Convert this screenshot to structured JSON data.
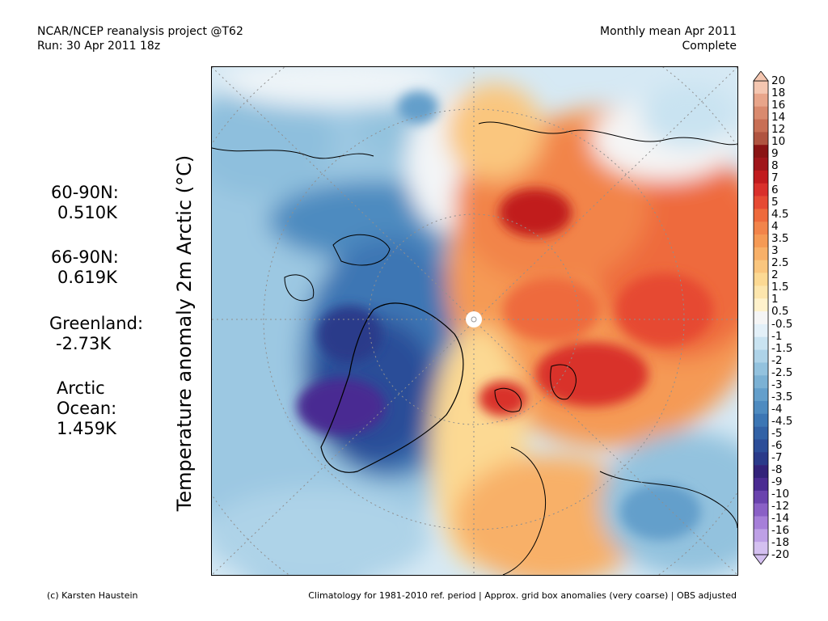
{
  "header": {
    "left_line1": "NCAR/NCEP reanalysis project @T62",
    "left_line2": "Run: 30 Apr 2011 18z",
    "right_line1": "Monthly mean Apr 2011",
    "right_line2": "Complete"
  },
  "axis_title": "Temperature anomaly 2m Arctic (°C)",
  "stats": [
    {
      "label": "60-90N:",
      "value": "0.510K"
    },
    {
      "label": "66-90N:",
      "value": "0.619K"
    },
    {
      "label": "Greenland:",
      "value": "-2.73K"
    },
    {
      "label_line1": "Arctic",
      "label_line2": "Ocean:",
      "value": "1.459K"
    }
  ],
  "colorbar": {
    "labels": [
      "20",
      "18",
      "16",
      "14",
      "12",
      "10",
      "9",
      "8",
      "7",
      "6",
      "5",
      "4.5",
      "4",
      "3.5",
      "3",
      "2.5",
      "2",
      "1.5",
      "1",
      "0.5",
      "-0.5",
      "-1",
      "-1.5",
      "-2",
      "-2.5",
      "-3",
      "-3.5",
      "-4",
      "-4.5",
      "-5",
      "-6",
      "-7",
      "-8",
      "-9",
      "-10",
      "-12",
      "-14",
      "-16",
      "-18",
      "-20"
    ],
    "colors": [
      "#f4c6b0",
      "#e8a58a",
      "#d98a6e",
      "#c86f55",
      "#b05440",
      "#8a1414",
      "#a0161a",
      "#c11b1e",
      "#d9302b",
      "#e64a33",
      "#ee6a3c",
      "#f2844a",
      "#f59a55",
      "#f8b068",
      "#fac67e",
      "#fcd993",
      "#fde6ad",
      "#fff2cc",
      "#f5f5f5",
      "#e3f0f8",
      "#c9e3f1",
      "#aed3e8",
      "#93c2de",
      "#7bb1d4",
      "#649fcb",
      "#4e8bc0",
      "#3c76b4",
      "#3262a6",
      "#2c4d98",
      "#2a3a8a",
      "#32227a",
      "#4a2b92",
      "#6a43ae",
      "#8a60c6",
      "#a67fd9",
      "#bea0e6",
      "#d4c0f0"
    ]
  },
  "footer": {
    "left": "(c) Karsten Haustein",
    "right": "Climatology for 1981-2010 ref. period | Approx. grid box anomalies (very coarse) | OBS adjusted"
  }
}
